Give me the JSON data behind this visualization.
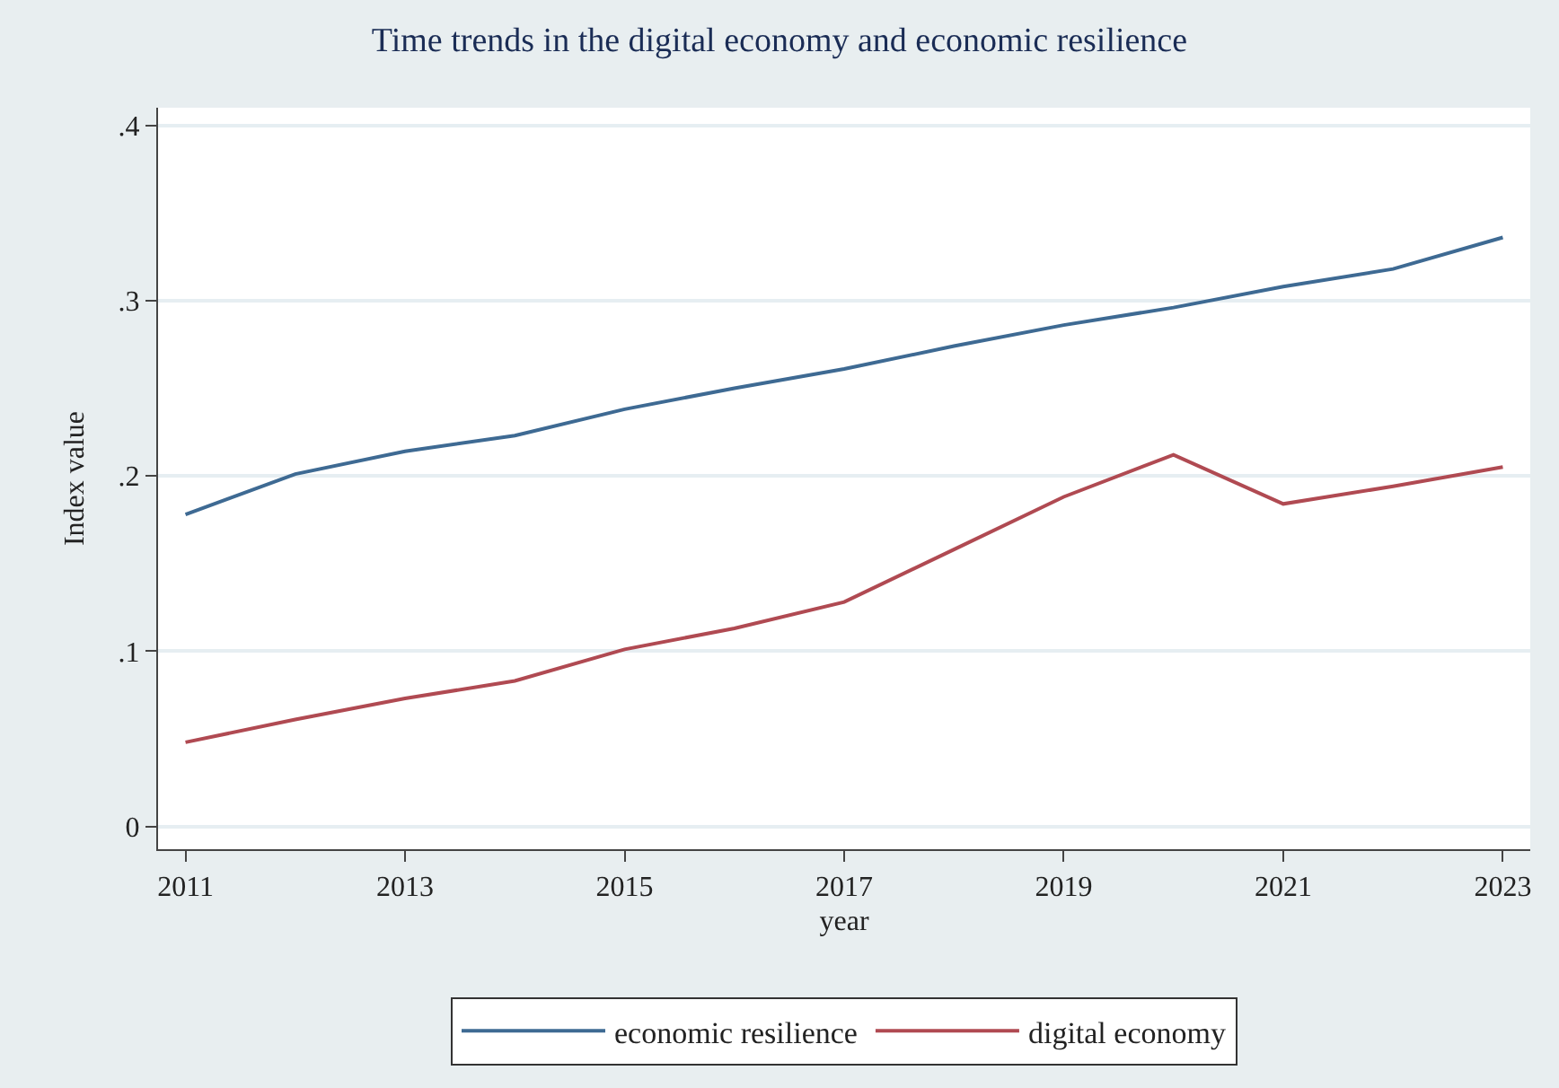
{
  "chart_data": {
    "type": "line",
    "title": "Time trends in the digital economy and economic resilience",
    "xlabel": "year",
    "ylabel": "Index value",
    "x": [
      2011,
      2012,
      2013,
      2014,
      2015,
      2016,
      2017,
      2018,
      2019,
      2020,
      2021,
      2022,
      2023
    ],
    "series": [
      {
        "name": "economic resilience",
        "color": "#3e6a93",
        "values": [
          0.178,
          0.201,
          0.214,
          0.223,
          0.238,
          0.25,
          0.261,
          0.274,
          0.286,
          0.296,
          0.308,
          0.318,
          0.336
        ]
      },
      {
        "name": "digital economy",
        "color": "#b04a52",
        "values": [
          0.048,
          0.061,
          0.073,
          0.083,
          0.101,
          0.113,
          0.128,
          0.158,
          0.188,
          0.212,
          0.184,
          0.194,
          0.205
        ]
      }
    ],
    "xlim": [
      2010.75,
      2023.25
    ],
    "xticks": [
      2011,
      2013,
      2015,
      2017,
      2019,
      2021,
      2023
    ],
    "ylim": [
      -0.013,
      0.41
    ],
    "yticks": [
      0,
      {
        "value": 0.1,
        "label": ".1"
      },
      {
        "value": 0.2,
        "label": ".2"
      },
      {
        "value": 0.3,
        "label": ".3"
      },
      {
        "value": 0.4,
        "label": ".4"
      }
    ],
    "grid": "y",
    "legend": "bottom",
    "marker": "none",
    "line_style": "solid"
  }
}
